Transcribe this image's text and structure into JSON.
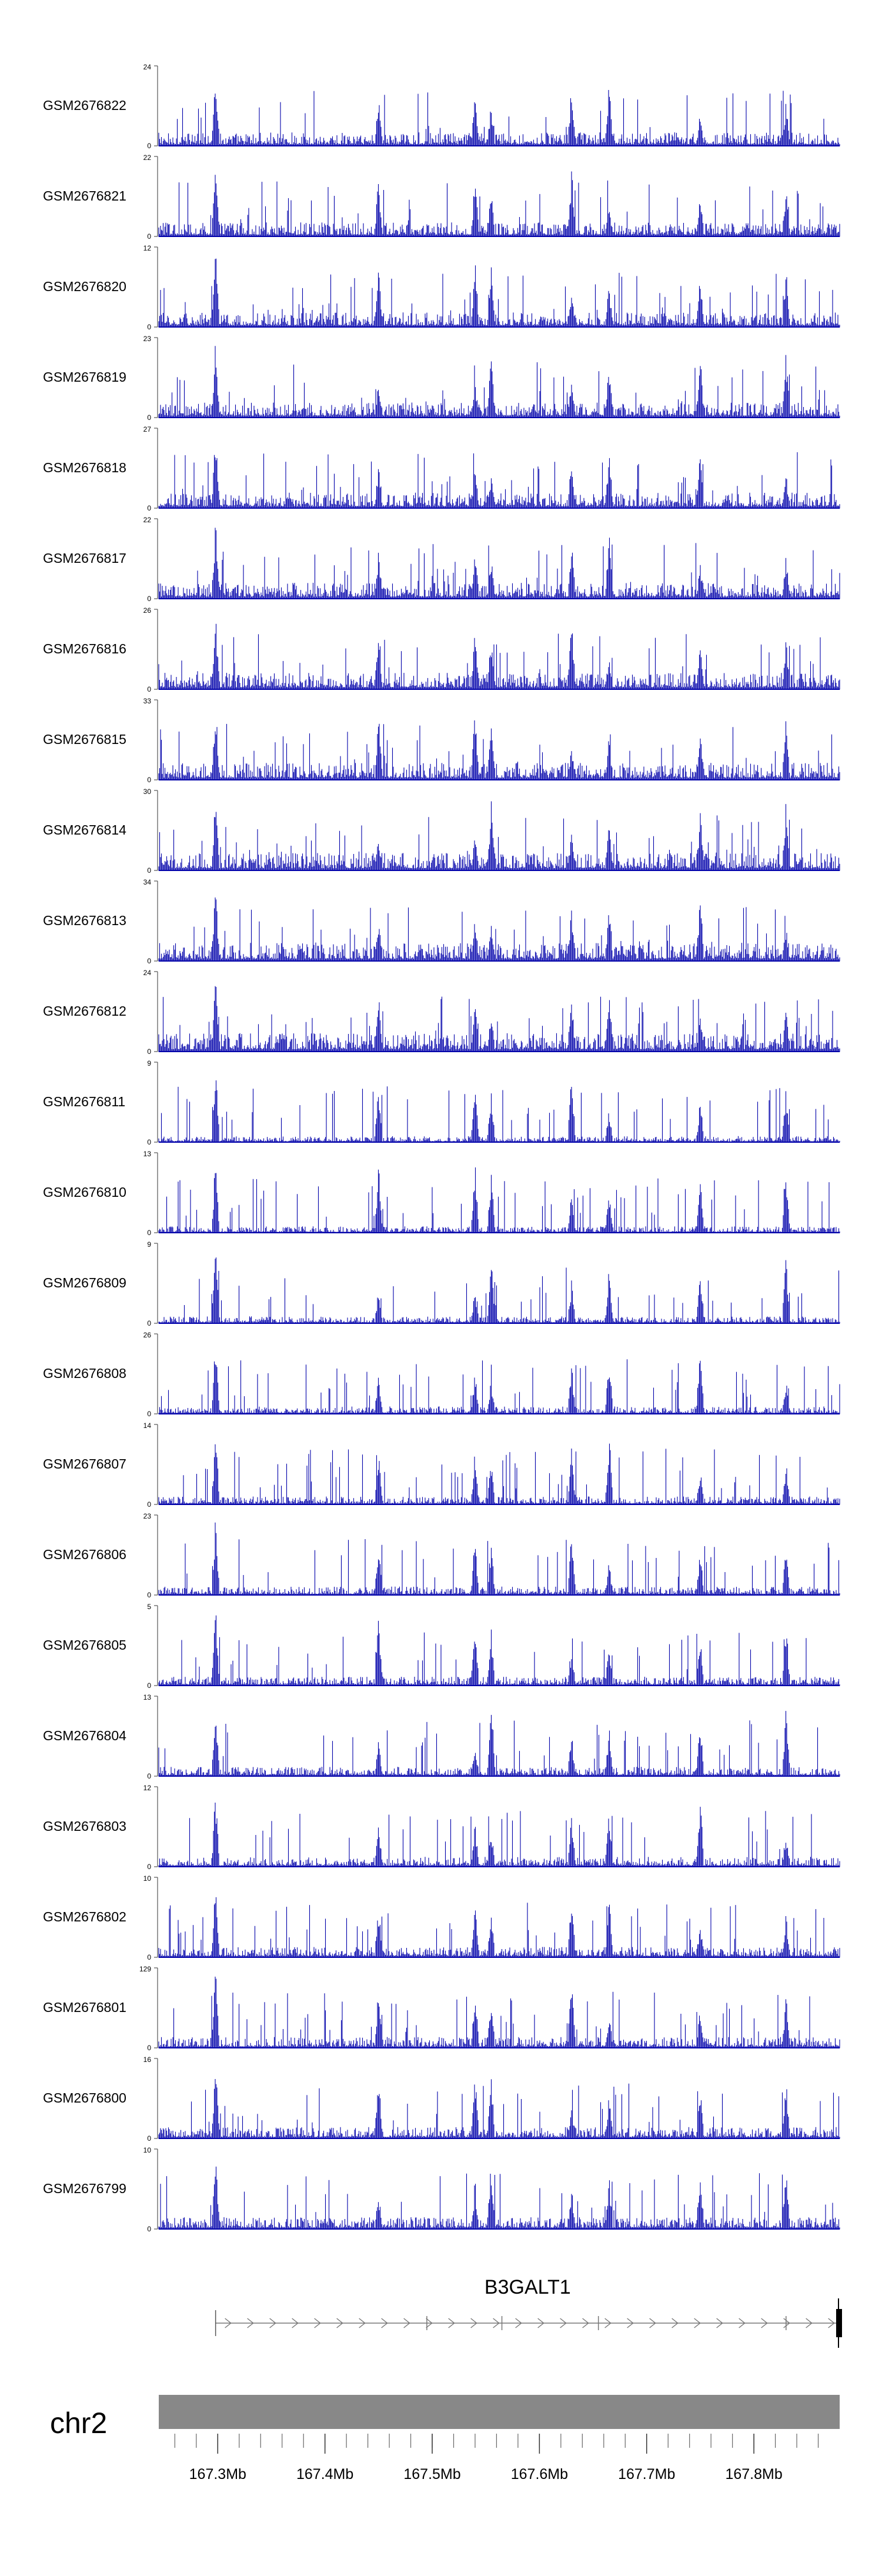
{
  "chart_data": {
    "type": "area",
    "title": "",
    "color": "#0000aa",
    "track_ymin": 0,
    "x_range_mb": [
      167.245,
      167.88
    ],
    "peak_positions_mb": [
      167.298,
      167.555,
      167.54,
      167.63,
      167.665,
      167.75,
      167.83,
      167.45
    ],
    "tracks": [
      {
        "name": "GSM2676822",
        "ymax": 24
      },
      {
        "name": "GSM2676821",
        "ymax": 22
      },
      {
        "name": "GSM2676820",
        "ymax": 12
      },
      {
        "name": "GSM2676819",
        "ymax": 23
      },
      {
        "name": "GSM2676818",
        "ymax": 27
      },
      {
        "name": "GSM2676817",
        "ymax": 22
      },
      {
        "name": "GSM2676816",
        "ymax": 26
      },
      {
        "name": "GSM2676815",
        "ymax": 33
      },
      {
        "name": "GSM2676814",
        "ymax": 30
      },
      {
        "name": "GSM2676813",
        "ymax": 34
      },
      {
        "name": "GSM2676812",
        "ymax": 24
      },
      {
        "name": "GSM2676811",
        "ymax": 9
      },
      {
        "name": "GSM2676810",
        "ymax": 13
      },
      {
        "name": "GSM2676809",
        "ymax": 9
      },
      {
        "name": "GSM2676808",
        "ymax": 26
      },
      {
        "name": "GSM2676807",
        "ymax": 14
      },
      {
        "name": "GSM2676806",
        "ymax": 23
      },
      {
        "name": "GSM2676805",
        "ymax": 5
      },
      {
        "name": "GSM2676804",
        "ymax": 13
      },
      {
        "name": "GSM2676803",
        "ymax": 12
      },
      {
        "name": "GSM2676802",
        "ymax": 10
      },
      {
        "name": "GSM2676801",
        "ymax": 129
      },
      {
        "name": "GSM2676800",
        "ymax": 16
      },
      {
        "name": "GSM2676799",
        "ymax": 10
      }
    ],
    "gene": {
      "name": "B3GALT1",
      "start_mb": 167.298,
      "end_mb": 167.88,
      "strand": "+",
      "exon_marks_mb": [
        167.495,
        167.565,
        167.655,
        167.83
      ]
    },
    "chromosome": "chr2",
    "x_ticks": [
      {
        "value": 167.3,
        "label": "167.3Mb"
      },
      {
        "value": 167.4,
        "label": "167.4Mb"
      },
      {
        "value": 167.5,
        "label": "167.5Mb"
      },
      {
        "value": 167.6,
        "label": "167.6Mb"
      },
      {
        "value": 167.7,
        "label": "167.7Mb"
      },
      {
        "value": 167.8,
        "label": "167.8Mb"
      }
    ]
  }
}
